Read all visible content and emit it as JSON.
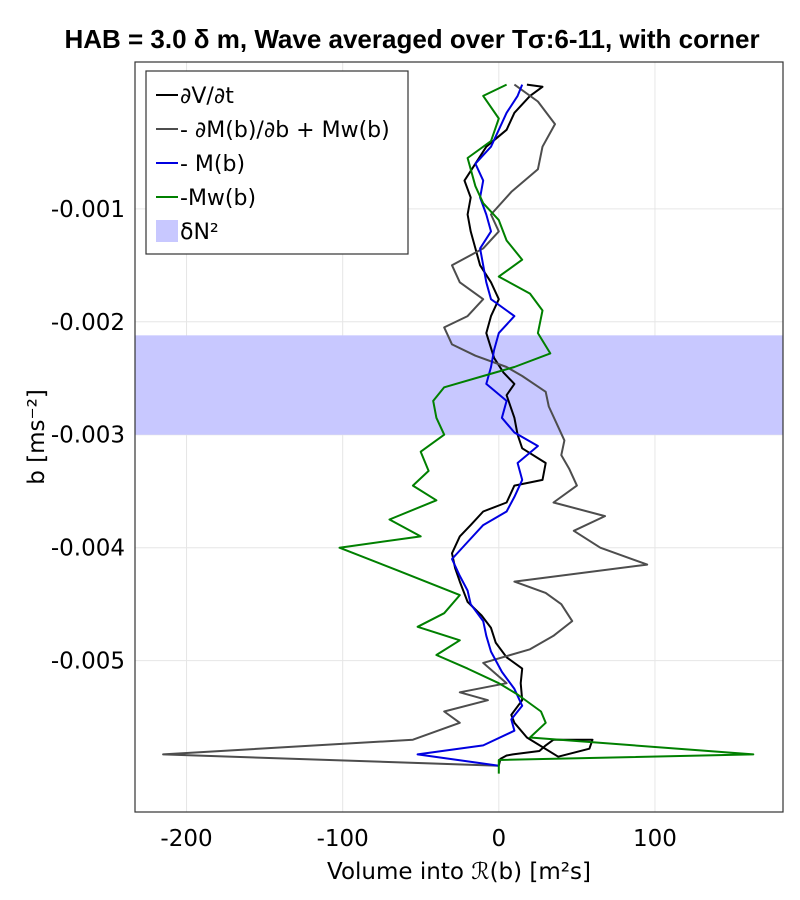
{
  "chart_data": {
    "type": "line",
    "title": "HAB = 3.0 δ m, Wave averaged over Tσ:6-11, with corner",
    "xlabel": "Volume into ℛ(b) [m²s]",
    "ylabel": "b [ms⁻²]",
    "xlim": [
      -233,
      182
    ],
    "ylim": [
      -0.00634,
      0.0003
    ],
    "xticks": [
      -200,
      -100,
      0,
      100
    ],
    "xtick_labels": [
      "-200",
      "-100",
      "0",
      "100"
    ],
    "yticks": [
      -0.001,
      -0.002,
      -0.003,
      -0.004,
      -0.005
    ],
    "ytick_labels": [
      "-0.001",
      "-0.002",
      "-0.003",
      "-0.004",
      "-0.005"
    ],
    "grid": true,
    "legend_position": "top-left",
    "band": {
      "label": "δN²",
      "y_range": [
        -0.003,
        -0.00212
      ],
      "color": "#c8c8ff"
    },
    "series": [
      {
        "name": "∂V/∂t",
        "color": "#000000",
        "points": [
          [
            0,
            -0.00593
          ],
          [
            1,
            -0.00587
          ],
          [
            5,
            -0.00584
          ],
          [
            9,
            -0.00583
          ],
          [
            26,
            -0.0058
          ],
          [
            30,
            -0.00575
          ],
          [
            35,
            -0.0057
          ],
          [
            60,
            -0.0057
          ],
          [
            58,
            -0.00578
          ],
          [
            38,
            -0.00585
          ],
          [
            18,
            -0.00568
          ],
          [
            10,
            -0.00555
          ],
          [
            8,
            -0.00548
          ],
          [
            15,
            -0.00535
          ],
          [
            14,
            -0.0052
          ],
          [
            15,
            -0.00507
          ],
          [
            5,
            -0.00497
          ],
          [
            -2,
            -0.00484
          ],
          [
            -5,
            -0.00471
          ],
          [
            -11,
            -0.0046
          ],
          [
            -20,
            -0.00448
          ],
          [
            -25,
            -0.0043
          ],
          [
            -28,
            -0.00418
          ],
          [
            -30,
            -0.00405
          ],
          [
            -25,
            -0.0039
          ],
          [
            -18,
            -0.0038
          ],
          [
            -10,
            -0.00368
          ],
          [
            5,
            -0.0036
          ],
          [
            10,
            -0.00345
          ],
          [
            28,
            -0.0034
          ],
          [
            30,
            -0.00325
          ],
          [
            15,
            -0.00312
          ],
          [
            12,
            -0.003
          ],
          [
            10,
            -0.00285
          ],
          [
            5,
            -0.00265
          ],
          [
            10,
            -0.00255
          ],
          [
            3,
            -0.00245
          ],
          [
            -3,
            -0.00232
          ],
          [
            -8,
            -0.0021
          ],
          [
            -5,
            -0.00195
          ],
          [
            0,
            -0.0018
          ],
          [
            -5,
            -0.00165
          ],
          [
            -12,
            -0.0015
          ],
          [
            -15,
            -0.00135
          ],
          [
            -18,
            -0.0012
          ],
          [
            -20,
            -0.00105
          ],
          [
            -18,
            -0.0009
          ],
          [
            -22,
            -0.00075
          ],
          [
            -15,
            -0.0006
          ],
          [
            -8,
            -0.00045
          ],
          [
            5,
            -0.0003
          ],
          [
            10,
            -0.00015
          ],
          [
            20,
            0.0
          ],
          [
            28,
            8e-05
          ],
          [
            18,
            0.0001
          ]
        ]
      },
      {
        "name": "- ∂M(b)/∂b + Mw(b)",
        "color": "#4d4d4d",
        "points": [
          [
            0,
            -0.00593
          ],
          [
            -215,
            -0.00583
          ],
          [
            -55,
            -0.0057
          ],
          [
            -25,
            -0.00555
          ],
          [
            -35,
            -0.00545
          ],
          [
            -7,
            -0.00535
          ],
          [
            -25,
            -0.00528
          ],
          [
            5,
            -0.0052
          ],
          [
            -10,
            -0.00502
          ],
          [
            20,
            -0.0049
          ],
          [
            35,
            -0.00478
          ],
          [
            47,
            -0.00465
          ],
          [
            40,
            -0.0045
          ],
          [
            30,
            -0.0044
          ],
          [
            10,
            -0.0043
          ],
          [
            95,
            -0.00415
          ],
          [
            65,
            -0.004
          ],
          [
            48,
            -0.00385
          ],
          [
            68,
            -0.00372
          ],
          [
            35,
            -0.0036
          ],
          [
            50,
            -0.00345
          ],
          [
            45,
            -0.0033
          ],
          [
            40,
            -0.00318
          ],
          [
            42,
            -0.00305
          ],
          [
            37,
            -0.0029
          ],
          [
            32,
            -0.00275
          ],
          [
            30,
            -0.00262
          ],
          [
            15,
            -0.00248
          ],
          [
            5,
            -0.0024
          ],
          [
            -15,
            -0.0023
          ],
          [
            -30,
            -0.0022
          ],
          [
            -35,
            -0.00205
          ],
          [
            -20,
            -0.00195
          ],
          [
            -10,
            -0.0018
          ],
          [
            -25,
            -0.00165
          ],
          [
            -30,
            -0.0015
          ],
          [
            -10,
            -0.00135
          ],
          [
            0,
            -0.0012
          ],
          [
            -5,
            -0.00105
          ],
          [
            8,
            -0.00085
          ],
          [
            25,
            -0.00065
          ],
          [
            28,
            -0.00045
          ],
          [
            36,
            -0.00025
          ],
          [
            25,
            -5e-05
          ],
          [
            10,
            0.0001
          ]
        ]
      },
      {
        "name": "- M(b)",
        "color": "#0000e0",
        "points": [
          [
            0,
            -0.00593
          ],
          [
            -52,
            -0.00583
          ],
          [
            -10,
            -0.00575
          ],
          [
            10,
            -0.00562
          ],
          [
            8,
            -0.00552
          ],
          [
            15,
            -0.0054
          ],
          [
            10,
            -0.00525
          ],
          [
            2,
            -0.0051
          ],
          [
            -5,
            -0.00492
          ],
          [
            -8,
            -0.00478
          ],
          [
            -10,
            -0.00465
          ],
          [
            -18,
            -0.0045
          ],
          [
            -20,
            -0.00438
          ],
          [
            -25,
            -0.00425
          ],
          [
            -30,
            -0.0041
          ],
          [
            -20,
            -0.00395
          ],
          [
            -10,
            -0.0038
          ],
          [
            5,
            -0.00368
          ],
          [
            10,
            -0.00355
          ],
          [
            15,
            -0.0034
          ],
          [
            12,
            -0.00325
          ],
          [
            25,
            -0.0031
          ],
          [
            10,
            -0.00298
          ],
          [
            2,
            -0.00285
          ],
          [
            5,
            -0.0027
          ],
          [
            -8,
            -0.00255
          ],
          [
            -5,
            -0.0024
          ],
          [
            -3,
            -0.00225
          ],
          [
            0,
            -0.0021
          ],
          [
            10,
            -0.00195
          ],
          [
            -5,
            -0.0018
          ],
          [
            -8,
            -0.00165
          ],
          [
            -10,
            -0.0015
          ],
          [
            -12,
            -0.00135
          ],
          [
            -5,
            -0.0012
          ],
          [
            -8,
            -0.00105
          ],
          [
            -12,
            -0.0009
          ],
          [
            -10,
            -0.00075
          ],
          [
            -15,
            -0.0006
          ],
          [
            -5,
            -0.00045
          ],
          [
            0,
            -0.0003
          ],
          [
            5,
            -0.00015
          ],
          [
            12,
            0.0
          ],
          [
            15,
            0.0001
          ]
        ]
      },
      {
        "name": "-Mw(b)",
        "color": "#008000",
        "points": [
          [
            0,
            -0.006
          ],
          [
            0,
            -0.00588
          ],
          [
            163,
            -0.00583
          ],
          [
            20,
            -0.00568
          ],
          [
            30,
            -0.00555
          ],
          [
            27,
            -0.00545
          ],
          [
            12,
            -0.0053
          ],
          [
            0,
            -0.0052
          ],
          [
            -20,
            -0.00507
          ],
          [
            -40,
            -0.00495
          ],
          [
            -25,
            -0.00482
          ],
          [
            -52,
            -0.0047
          ],
          [
            -35,
            -0.00458
          ],
          [
            -25,
            -0.00442
          ],
          [
            -65,
            -0.0042
          ],
          [
            -102,
            -0.004
          ],
          [
            -50,
            -0.0039
          ],
          [
            -70,
            -0.00375
          ],
          [
            -40,
            -0.00358
          ],
          [
            -55,
            -0.00345
          ],
          [
            -45,
            -0.00332
          ],
          [
            -50,
            -0.00315
          ],
          [
            -35,
            -0.003
          ],
          [
            -40,
            -0.00285
          ],
          [
            -42,
            -0.0027
          ],
          [
            -35,
            -0.00258
          ],
          [
            -10,
            -0.00248
          ],
          [
            10,
            -0.0024
          ],
          [
            33,
            -0.00228
          ],
          [
            25,
            -0.0021
          ],
          [
            28,
            -0.0019
          ],
          [
            20,
            -0.00175
          ],
          [
            0,
            -0.0016
          ],
          [
            15,
            -0.00145
          ],
          [
            5,
            -0.00128
          ],
          [
            0,
            -0.0011
          ],
          [
            -10,
            -0.00095
          ],
          [
            -15,
            -0.0008
          ],
          [
            -20,
            -0.00055
          ],
          [
            -5,
            -0.0004
          ],
          [
            0,
            -0.0002
          ],
          [
            -10,
            0.0
          ],
          [
            5,
            0.0001
          ]
        ]
      }
    ]
  }
}
